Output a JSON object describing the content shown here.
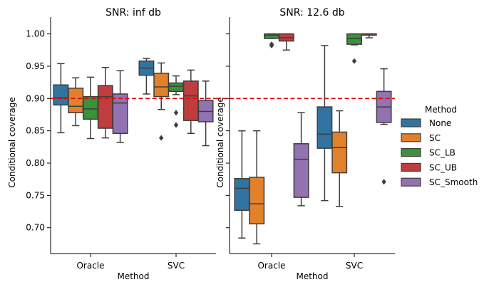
{
  "chart_data": [
    {
      "type": "box",
      "title": "SNR: inf db",
      "xlabel": "Method",
      "ylabel": "Conditional coverage",
      "categories": [
        "Oracle",
        "SVC"
      ],
      "ylim": [
        0.66,
        1.015
      ],
      "yticks": [
        "0.70",
        "0.75",
        "0.80",
        "0.85",
        "0.90",
        "0.95",
        "1.00"
      ],
      "reference_line": 0.9,
      "series": [
        {
          "name": "None",
          "boxes": [
            {
              "whisker_low": 0.847,
              "q1": 0.89,
              "median": 0.901,
              "q3": 0.921,
              "whisker_high": 0.954,
              "outliers": []
            },
            {
              "whisker_low": 0.907,
              "q1": 0.936,
              "median": 0.947,
              "q3": 0.958,
              "whisker_high": 0.962,
              "outliers": []
            }
          ]
        },
        {
          "name": "SC",
          "boxes": [
            {
              "whisker_low": 0.858,
              "q1": 0.878,
              "median": 0.888,
              "q3": 0.916,
              "whisker_high": 0.932,
              "outliers": []
            },
            {
              "whisker_low": 0.883,
              "q1": 0.903,
              "median": 0.918,
              "q3": 0.939,
              "whisker_high": 0.955,
              "outliers": [
                0.839
              ]
            }
          ]
        },
        {
          "name": "SC_LB",
          "boxes": [
            {
              "whisker_low": 0.838,
              "q1": 0.868,
              "median": 0.884,
              "q3": 0.903,
              "whisker_high": 0.933,
              "outliers": []
            },
            {
              "whisker_low": 0.906,
              "q1": 0.911,
              "median": 0.919,
              "q3": 0.924,
              "whisker_high": 0.935,
              "outliers": [
                0.878,
                0.859
              ]
            }
          ]
        },
        {
          "name": "SC_UB",
          "boxes": [
            {
              "whisker_low": 0.839,
              "q1": 0.854,
              "median": 0.903,
              "q3": 0.92,
              "whisker_high": 0.948,
              "outliers": []
            },
            {
              "whisker_low": 0.846,
              "q1": 0.866,
              "median": 0.904,
              "q3": 0.927,
              "whisker_high": 0.944,
              "outliers": []
            }
          ]
        },
        {
          "name": "SC_Smooth",
          "boxes": [
            {
              "whisker_low": 0.832,
              "q1": 0.846,
              "median": 0.893,
              "q3": 0.907,
              "whisker_high": 0.943,
              "outliers": []
            },
            {
              "whisker_low": 0.827,
              "q1": 0.864,
              "median": 0.88,
              "q3": 0.897,
              "whisker_high": 0.927,
              "outliers": []
            }
          ]
        }
      ]
    },
    {
      "type": "box",
      "title": "SNR: 12.6 db",
      "xlabel": "Method",
      "ylabel": "Conditional coverage",
      "categories": [
        "Oracle",
        "SVC"
      ],
      "ylim": [
        0.66,
        1.015
      ],
      "reference_line": 0.9,
      "series": [
        {
          "name": "None",
          "boxes": [
            {
              "whisker_low": 0.684,
              "q1": 0.727,
              "median": 0.761,
              "q3": 0.776,
              "whisker_high": 0.85,
              "outliers": []
            },
            {
              "whisker_low": 0.742,
              "q1": 0.823,
              "median": 0.845,
              "q3": 0.887,
              "whisker_high": 0.982,
              "outliers": []
            }
          ]
        },
        {
          "name": "SC",
          "boxes": [
            {
              "whisker_low": 0.675,
              "q1": 0.706,
              "median": 0.737,
              "q3": 0.778,
              "whisker_high": 0.85,
              "outliers": []
            },
            {
              "whisker_low": 0.733,
              "q1": 0.785,
              "median": 0.824,
              "q3": 0.848,
              "whisker_high": 0.881,
              "outliers": []
            }
          ]
        },
        {
          "name": "SC_LB",
          "boxes": [
            {
              "whisker_low": 0.993,
              "q1": 0.993,
              "median": 0.998,
              "q3": 1.0,
              "whisker_high": 1.0,
              "outliers": [
                0.982,
                0.984
              ]
            },
            {
              "whisker_low": 0.983,
              "q1": 0.984,
              "median": 0.993,
              "q3": 1.0,
              "whisker_high": 1.0,
              "outliers": [
                0.958
              ]
            }
          ]
        },
        {
          "name": "SC_UB",
          "boxes": [
            {
              "whisker_low": 0.975,
              "q1": 0.989,
              "median": 0.994,
              "q3": 1.0,
              "whisker_high": 1.0,
              "outliers": []
            },
            {
              "whisker_low": 0.994,
              "q1": 0.998,
              "median": 1.0,
              "q3": 1.0,
              "whisker_high": 1.0,
              "outliers": []
            }
          ]
        },
        {
          "name": "SC_Smooth",
          "boxes": [
            {
              "whisker_low": 0.734,
              "q1": 0.747,
              "median": 0.806,
              "q3": 0.83,
              "whisker_high": 0.878,
              "outliers": []
            },
            {
              "whisker_low": 0.86,
              "q1": 0.863,
              "median": 0.887,
              "q3": 0.911,
              "whisker_high": 0.946,
              "outliers": [
                0.771
              ]
            }
          ]
        }
      ]
    }
  ],
  "legend": {
    "title": "Method",
    "placement": "right",
    "entries": [
      "None",
      "SC",
      "SC_LB",
      "SC_UB",
      "SC_Smooth"
    ]
  },
  "colors": {
    "None": "#3274a1",
    "SC": "#e1812c",
    "SC_LB": "#3a923a",
    "SC_UB": "#c03d3e",
    "SC_Smooth": "#9372b2",
    "reference_line": "#e00000",
    "edge": "#3d3d3d"
  }
}
